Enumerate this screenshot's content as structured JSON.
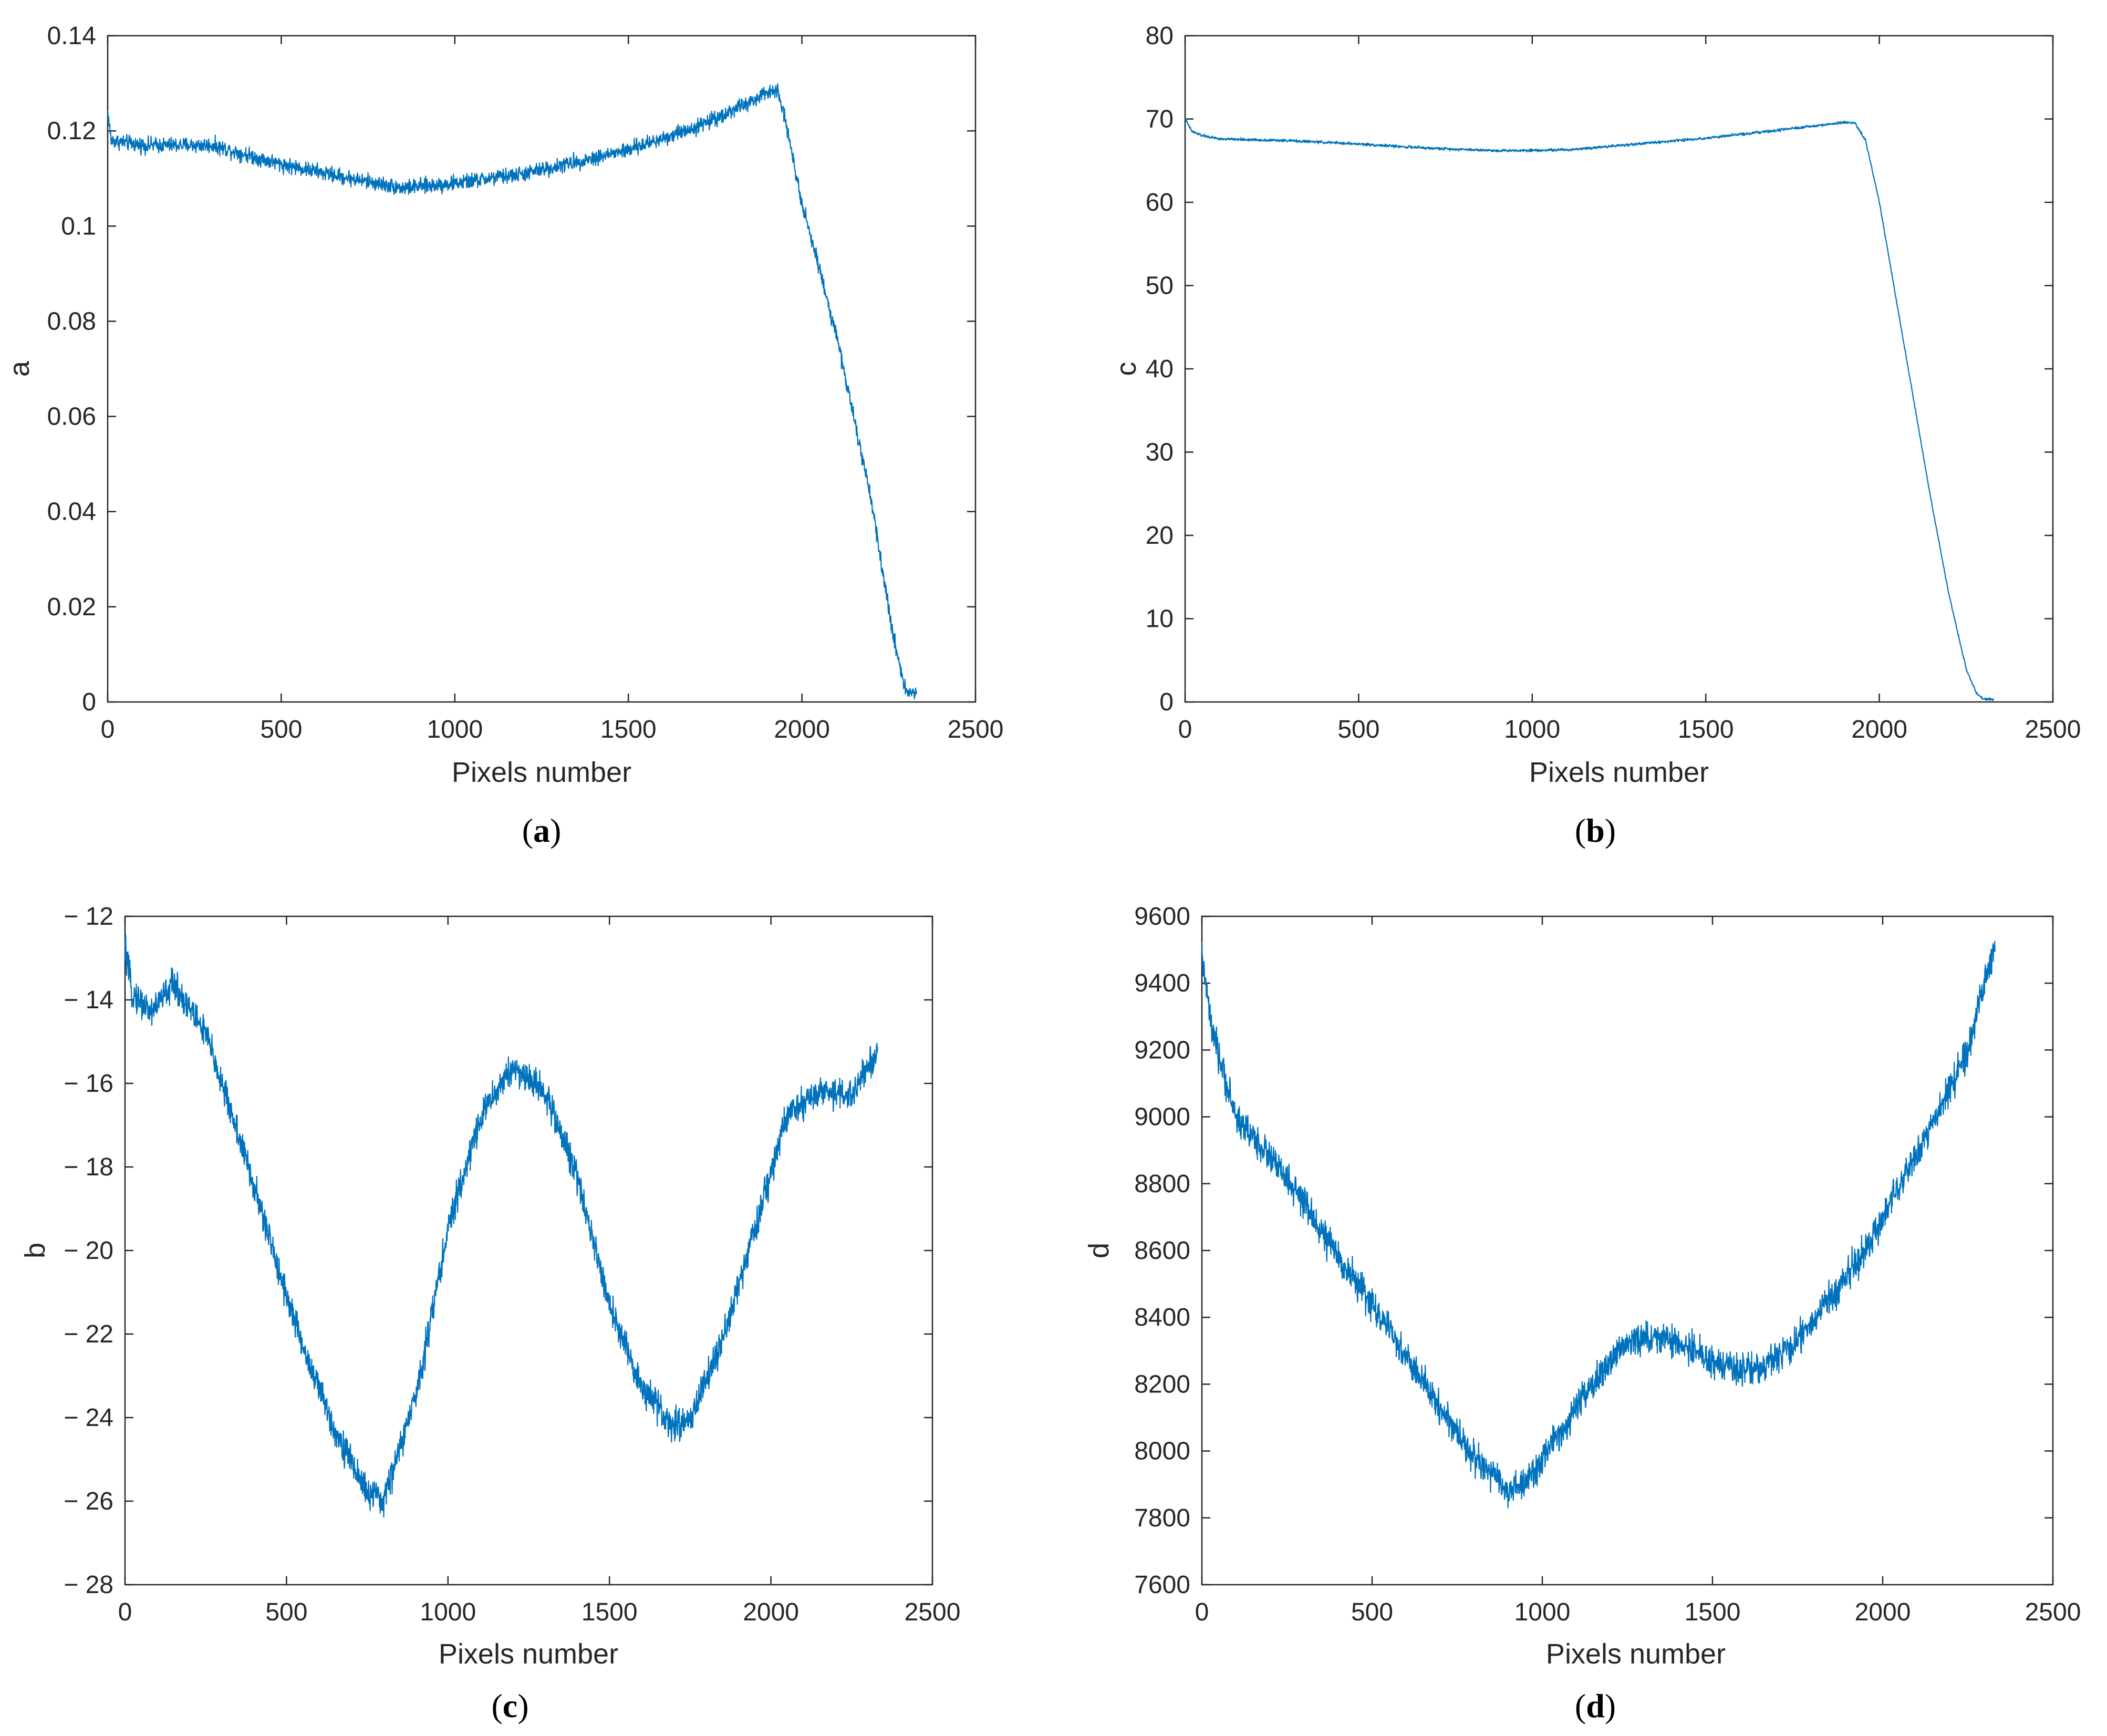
{
  "figure": {
    "line_color": "#0072BD",
    "axis_color": "#262626"
  },
  "chart_data": [
    {
      "id": "a",
      "type": "line",
      "caption": "a",
      "xlabel": "Pixels number",
      "ylabel": "a",
      "xlim": [
        0,
        2500
      ],
      "ylim": [
        0,
        0.14
      ],
      "xticks": [
        0,
        500,
        1000,
        1500,
        2000,
        2500
      ],
      "xtick_labels": [
        "0",
        "500",
        "1000",
        "1500",
        "2000",
        "2500"
      ],
      "yticks": [
        0,
        0.02,
        0.04,
        0.06,
        0.08,
        0.1,
        0.12,
        0.14
      ],
      "ytick_labels": [
        "0",
        "0.02",
        "0.04",
        "0.06",
        "0.08",
        "0.1",
        "0.12",
        "0.14"
      ],
      "noise": 0.0015,
      "series": [
        {
          "name": "a",
          "x": [
            0,
            10,
            100,
            300,
            500,
            700,
            850,
            1000,
            1200,
            1500,
            1700,
            1850,
            1930,
            1950,
            2000,
            2100,
            2200,
            2260,
            2300,
            2330
          ],
          "y": [
            0.124,
            0.118,
            0.117,
            0.117,
            0.113,
            0.11,
            0.108,
            0.109,
            0.111,
            0.116,
            0.121,
            0.126,
            0.129,
            0.123,
            0.105,
            0.077,
            0.042,
            0.015,
            0.002,
            0.002
          ]
        }
      ]
    },
    {
      "id": "b",
      "type": "line",
      "caption": "b",
      "xlabel": "Pixels number",
      "ylabel": "c",
      "xlim": [
        0,
        2500
      ],
      "ylim": [
        0,
        80
      ],
      "xticks": [
        0,
        500,
        1000,
        1500,
        2000,
        2500
      ],
      "xtick_labels": [
        "0",
        "500",
        "1000",
        "1500",
        "2000",
        "2500"
      ],
      "yticks": [
        0,
        10,
        20,
        30,
        40,
        50,
        60,
        70,
        80
      ],
      "ytick_labels": [
        "0",
        "10",
        "20",
        "30",
        "40",
        "50",
        "60",
        "70",
        "80"
      ],
      "noise": 0.15,
      "series": [
        {
          "name": "c",
          "x": [
            0,
            20,
            50,
            100,
            300,
            500,
            700,
            900,
            1100,
            1300,
            1500,
            1700,
            1900,
            1930,
            1960,
            2000,
            2050,
            2100,
            2150,
            2200,
            2250,
            2280,
            2300,
            2330
          ],
          "y": [
            70,
            68.5,
            68,
            67.6,
            67.4,
            67,
            66.5,
            66.2,
            66.3,
            67,
            67.7,
            68.6,
            69.6,
            69.5,
            67.5,
            60,
            48,
            36,
            24,
            13,
            4,
            1,
            0.3,
            0.3
          ]
        }
      ]
    },
    {
      "id": "c",
      "type": "line",
      "caption": "c",
      "xlabel": "Pixels number",
      "ylabel": "b",
      "xlim": [
        0,
        2500
      ],
      "ylim": [
        -28,
        -12
      ],
      "xticks": [
        0,
        500,
        1000,
        1500,
        2000,
        2500
      ],
      "xtick_labels": [
        "0",
        "500",
        "1000",
        "1500",
        "2000",
        "2500"
      ],
      "yticks": [
        -28,
        -26,
        -24,
        -22,
        -20,
        -18,
        -16,
        -14,
        -12
      ],
      "ytick_labels": [
        "− 28",
        "− 26",
        "− 24",
        "− 22",
        "− 20",
        "− 18",
        "− 16",
        "− 14",
        "− 12"
      ],
      "noise": 0.35,
      "series": [
        {
          "name": "b",
          "x": [
            0,
            20,
            80,
            150,
            250,
            350,
            450,
            550,
            650,
            750,
            800,
            900,
            1000,
            1100,
            1200,
            1300,
            1400,
            1500,
            1600,
            1700,
            1750,
            1850,
            1950,
            2050,
            2150,
            2250,
            2330
          ],
          "y": [
            -12.8,
            -13.8,
            -14.3,
            -13.6,
            -14.8,
            -17.2,
            -19.8,
            -22.3,
            -24.3,
            -25.8,
            -26,
            -23.5,
            -19.5,
            -16.8,
            -15.6,
            -16.2,
            -18.2,
            -21.3,
            -23.3,
            -24.2,
            -24,
            -22.2,
            -19.5,
            -16.8,
            -16.2,
            -16.3,
            -15.2
          ]
        }
      ]
    },
    {
      "id": "d",
      "type": "line",
      "caption": "d",
      "xlabel": "Pixels number",
      "ylabel": "d",
      "xlim": [
        0,
        2500
      ],
      "ylim": [
        7600,
        9600
      ],
      "xticks": [
        0,
        500,
        1000,
        1500,
        2000,
        2500
      ],
      "xtick_labels": [
        "0",
        "500",
        "1000",
        "1500",
        "2000",
        "2500"
      ],
      "yticks": [
        7600,
        7800,
        8000,
        8200,
        8400,
        8600,
        8800,
        9000,
        9200,
        9400,
        9600
      ],
      "ytick_labels": [
        "7600",
        "7800",
        "8000",
        "8200",
        "8400",
        "8600",
        "8800",
        "9000",
        "9200",
        "9400",
        "9600"
      ],
      "noise": 45,
      "series": [
        {
          "name": "d",
          "x": [
            0,
            30,
            100,
            200,
            300,
            400,
            500,
            600,
            700,
            800,
            900,
            950,
            1050,
            1150,
            1250,
            1350,
            1450,
            1550,
            1650,
            1750,
            1850,
            1950,
            2050,
            2150,
            2250,
            2330
          ],
          "y": [
            9480,
            9250,
            9000,
            8880,
            8740,
            8580,
            8440,
            8280,
            8130,
            7980,
            7880,
            7900,
            8050,
            8200,
            8330,
            8340,
            8300,
            8240,
            8250,
            8330,
            8460,
            8600,
            8800,
            8980,
            9200,
            9520
          ]
        }
      ]
    }
  ]
}
